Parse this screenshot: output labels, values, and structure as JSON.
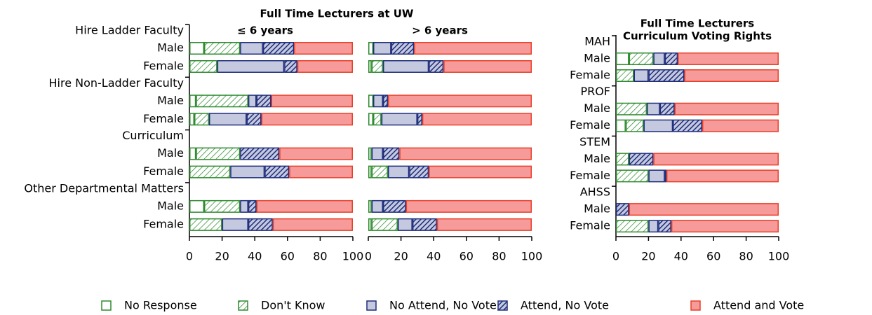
{
  "legend_corner": "bottom",
  "chart_data": [
    {
      "type": "bar",
      "orientation": "horizontal",
      "stacked": true,
      "title": "Full Time Lecturers at UW",
      "subtitle": "≤ 6 years",
      "groups": [
        "Hire Ladder Faculty",
        "Hire Non-Ladder Faculty",
        "Curriculum",
        "Other Departmental Matters"
      ],
      "categories": [
        "Male",
        "Female",
        "Male",
        "Female",
        "Male",
        "Female",
        "Male",
        "Female"
      ],
      "xlim": [
        0,
        100
      ],
      "xticks": [
        0,
        20,
        40,
        60,
        80,
        100
      ],
      "series": [
        {
          "name": "No Response",
          "color": "#2e8b2e",
          "hatch": false,
          "values": [
            9,
            0,
            4,
            3,
            4,
            0,
            9,
            0
          ]
        },
        {
          "name": "Don't Know",
          "color": "#2e8b2e",
          "hatch": true,
          "values": [
            22,
            17,
            32,
            9,
            27,
            25,
            22,
            20
          ]
        },
        {
          "name": "No Attend, No Vote,",
          "color": "#1f2d7a",
          "hatch": false,
          "values": [
            14,
            41,
            5,
            23,
            0,
            21,
            5,
            16
          ]
        },
        {
          "name": "Attend, No Vote",
          "color": "#1f2d7a",
          "hatch": true,
          "values": [
            19,
            8,
            9,
            9,
            24,
            15,
            5,
            15
          ]
        },
        {
          "name": "Attend and Vote",
          "color": "#e8402a",
          "hatch": false,
          "values": [
            36,
            34,
            50,
            56,
            45,
            39,
            59,
            49
          ]
        }
      ]
    },
    {
      "type": "bar",
      "orientation": "horizontal",
      "stacked": true,
      "subtitle": "> 6 years",
      "xlim": [
        0,
        100
      ],
      "xticks": [
        0,
        20,
        40,
        60,
        80,
        100
      ],
      "series": [
        {
          "values": [
            3,
            2,
            3,
            3,
            2,
            2,
            2,
            2
          ]
        },
        {
          "values": [
            0,
            7,
            0,
            5,
            0,
            10,
            0,
            16
          ]
        },
        {
          "values": [
            11,
            28,
            6,
            22,
            7,
            13,
            7,
            9
          ]
        },
        {
          "values": [
            14,
            9,
            3,
            3,
            10,
            12,
            14,
            15
          ]
        },
        {
          "values": [
            72,
            54,
            88,
            67,
            81,
            63,
            77,
            58
          ]
        }
      ]
    },
    {
      "type": "bar",
      "orientation": "horizontal",
      "stacked": true,
      "title": [
        "Full Time Lecturers",
        "Curriculum Voting Rights"
      ],
      "groups": [
        "MAH",
        "PROF",
        "STEM",
        "AHSS"
      ],
      "categories": [
        "Male",
        "Female",
        "Male",
        "Female",
        "Male",
        "Female",
        "Male",
        "Female"
      ],
      "xlim": [
        0,
        100
      ],
      "xticks": [
        0,
        20,
        40,
        60,
        80,
        100
      ],
      "series": [
        {
          "values": [
            8,
            0,
            0,
            6,
            0,
            0,
            0,
            0
          ]
        },
        {
          "values": [
            15,
            11,
            19,
            11,
            8,
            20,
            0,
            20
          ]
        },
        {
          "values": [
            7,
            9,
            8,
            18,
            0,
            10,
            0,
            6
          ]
        },
        {
          "values": [
            8,
            22,
            9,
            18,
            15,
            1,
            8,
            8
          ]
        },
        {
          "values": [
            62,
            58,
            64,
            47,
            77,
            69,
            92,
            66
          ]
        }
      ]
    }
  ]
}
